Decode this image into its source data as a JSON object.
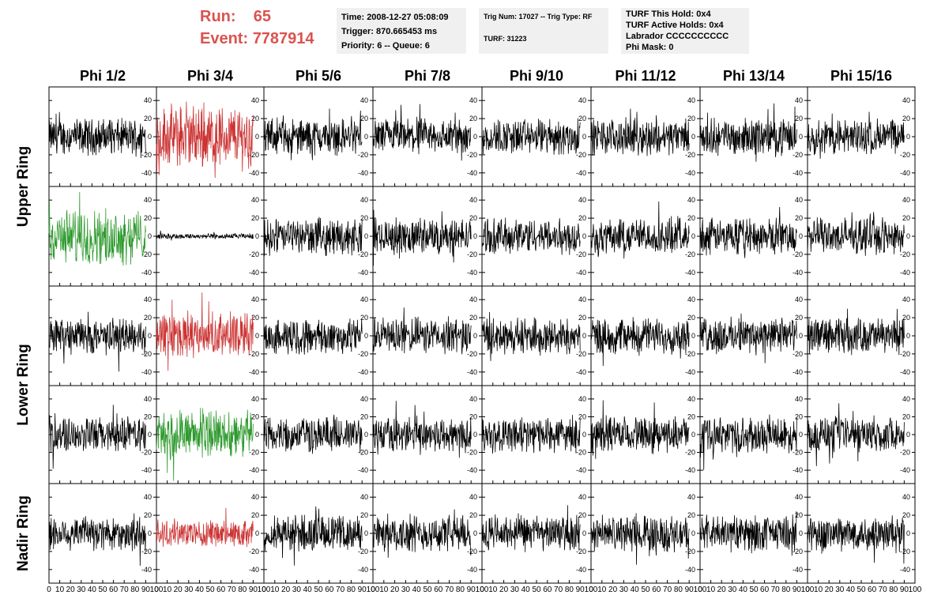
{
  "header": {
    "run_label": "Run:",
    "run_value": "65",
    "event_label": "Event:",
    "event_value": "7787914"
  },
  "info_boxes": [
    {
      "lines": [
        "Time: 2008-12-27 05:08:09",
        "Trigger: 870.665453 ms",
        "Priority: 6 -- Queue: 6"
      ]
    },
    {
      "lines": [
        "Trig Num: 17027 -- Trig Type: RF",
        "",
        "TURF: 31223"
      ]
    },
    {
      "lines": [
        "TURF This Hold: 0x4",
        "TURF Active Holds: 0x4",
        "Labrador CCCCCCCCCC",
        "Phi Mask: 0"
      ]
    }
  ],
  "chart_data": {
    "type": "line",
    "columns": [
      "Phi 1/2",
      "Phi 3/4",
      "Phi 5/6",
      "Phi 7/8",
      "Phi 9/10",
      "Phi 11/12",
      "Phi 13/14",
      "Phi 15/16"
    ],
    "rows": [
      "Upper Ring",
      "Upper Ring",
      "Lower Ring",
      "Lower Ring",
      "Nadir Ring"
    ],
    "row_labels": [
      {
        "label": "Upper Ring",
        "rows": [
          0,
          1
        ]
      },
      {
        "label": "Lower Ring",
        "rows": [
          2,
          3
        ]
      },
      {
        "label": "Nadir Ring",
        "rows": [
          4
        ]
      }
    ],
    "xlim": [
      0,
      100
    ],
    "ylim": [
      -55,
      55
    ],
    "y_ticks": [
      -40,
      -20,
      0,
      20,
      40
    ],
    "x_ticks": [
      0,
      10,
      20,
      30,
      40,
      50,
      60,
      70,
      80,
      90,
      100
    ],
    "x_tick_labels": [
      "0",
      "10",
      "20",
      "30",
      "40",
      "50",
      "60",
      "70",
      "80",
      "90",
      "100"
    ],
    "y_tick_labels": [
      "-40",
      "-20",
      "0",
      "20",
      "40"
    ],
    "x_tick_label_strip": "0 10203040506070809010",
    "waveform_samples": 260,
    "colors": {
      "default": "#000000",
      "red": "#cc3333",
      "green": "#2e9a2e"
    },
    "highlights": [
      {
        "row": 0,
        "col": 1,
        "color": "red",
        "amplitude": 28
      },
      {
        "row": 1,
        "col": 0,
        "color": "green",
        "amplitude": 24
      },
      {
        "row": 1,
        "col": 1,
        "color": "default",
        "amplitude": 2.5
      },
      {
        "row": 2,
        "col": 1,
        "color": "red",
        "amplitude": 20
      },
      {
        "row": 3,
        "col": 1,
        "color": "green",
        "amplitude": 22
      },
      {
        "row": 4,
        "col": 1,
        "color": "red",
        "amplitude": 12
      }
    ],
    "default_amplitude": 16
  }
}
